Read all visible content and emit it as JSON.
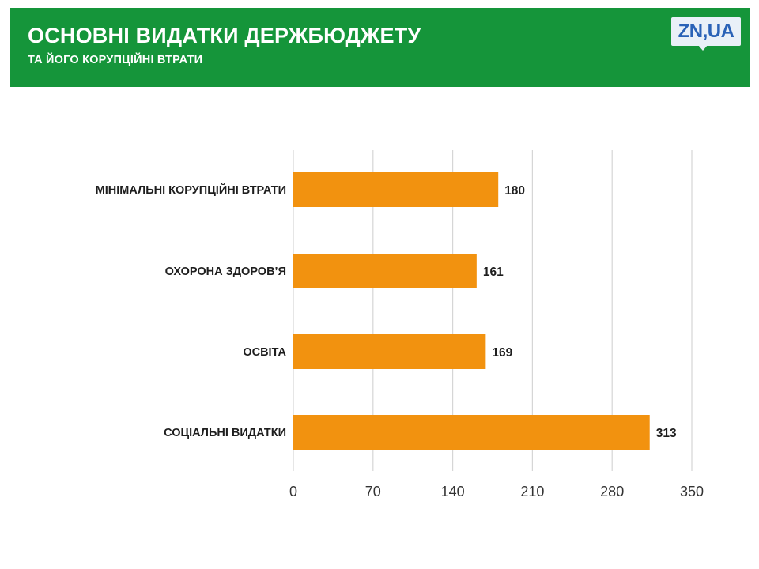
{
  "header": {
    "title": "ОСНОВНІ ВИДАТКИ ДЕРЖБЮДЖЕТУ",
    "subtitle": "ТА ЙОГО КОРУПЦІЙНІ ВТРАТИ",
    "logo_text": "ZN,UA",
    "background_color": "#15953a",
    "logo_color": "#2a62b7"
  },
  "chart_data": {
    "type": "bar",
    "orientation": "horizontal",
    "categories": [
      "МІНІМАЛЬНІ КОРУПЦІЙНІ ВТРАТИ",
      "ОХОРОНА ЗДОРОВ’Я",
      "ОСВІТА",
      "СОЦІАЛЬНІ ВИДАТКИ"
    ],
    "values": [
      180,
      161,
      169,
      313
    ],
    "data_labels": [
      "180",
      "161",
      "169",
      "313"
    ],
    "xlim": [
      0,
      350
    ],
    "xticks": [
      0,
      70,
      140,
      210,
      280,
      350
    ],
    "xtick_labels": [
      "0",
      "70",
      "140",
      "210",
      "280",
      "350"
    ],
    "title": "",
    "xlabel": "",
    "ylabel": "",
    "grid": "vertical",
    "legend": "none",
    "bar_color": "#f2920f",
    "grid_color": "#d6d6d6"
  }
}
